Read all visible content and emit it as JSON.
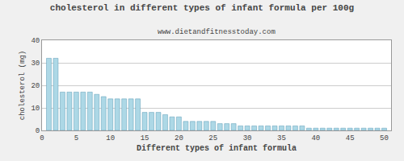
{
  "chart_data": {
    "type": "bar",
    "title": "cholesterol in different types of infant formula per 100g",
    "subtitle": "www.dietandfitnesstoday.com",
    "xlabel": "Different types of infant formula",
    "ylabel": "cholesterol (mg)",
    "x": [
      1,
      2,
      3,
      4,
      5,
      6,
      7,
      8,
      9,
      10,
      11,
      12,
      13,
      14,
      15,
      16,
      17,
      18,
      19,
      20,
      21,
      22,
      23,
      24,
      25,
      26,
      27,
      28,
      29,
      30,
      31,
      32,
      33,
      34,
      35,
      36,
      37,
      38,
      39,
      40,
      41,
      42,
      43,
      44,
      45,
      46,
      47,
      48,
      49,
      50
    ],
    "values": [
      32,
      32,
      17,
      17,
      17,
      17,
      17,
      16,
      15,
      14,
      14,
      14,
      14,
      14,
      8,
      8,
      8,
      7,
      6,
      6,
      4,
      4,
      4,
      4,
      4,
      3,
      3,
      3,
      2,
      2,
      2,
      2,
      2,
      2,
      2,
      2,
      2,
      2,
      1,
      1,
      1,
      1,
      1,
      1,
      1,
      1,
      1,
      1,
      1,
      1
    ],
    "color": "#add8e6",
    "xlim": [
      0,
      51
    ],
    "ylim": [
      0,
      40
    ],
    "xticks": [
      0,
      5,
      10,
      15,
      20,
      25,
      30,
      35,
      40,
      45,
      50
    ],
    "yticks": [
      0,
      10,
      20,
      30,
      40
    ],
    "grid": true
  }
}
